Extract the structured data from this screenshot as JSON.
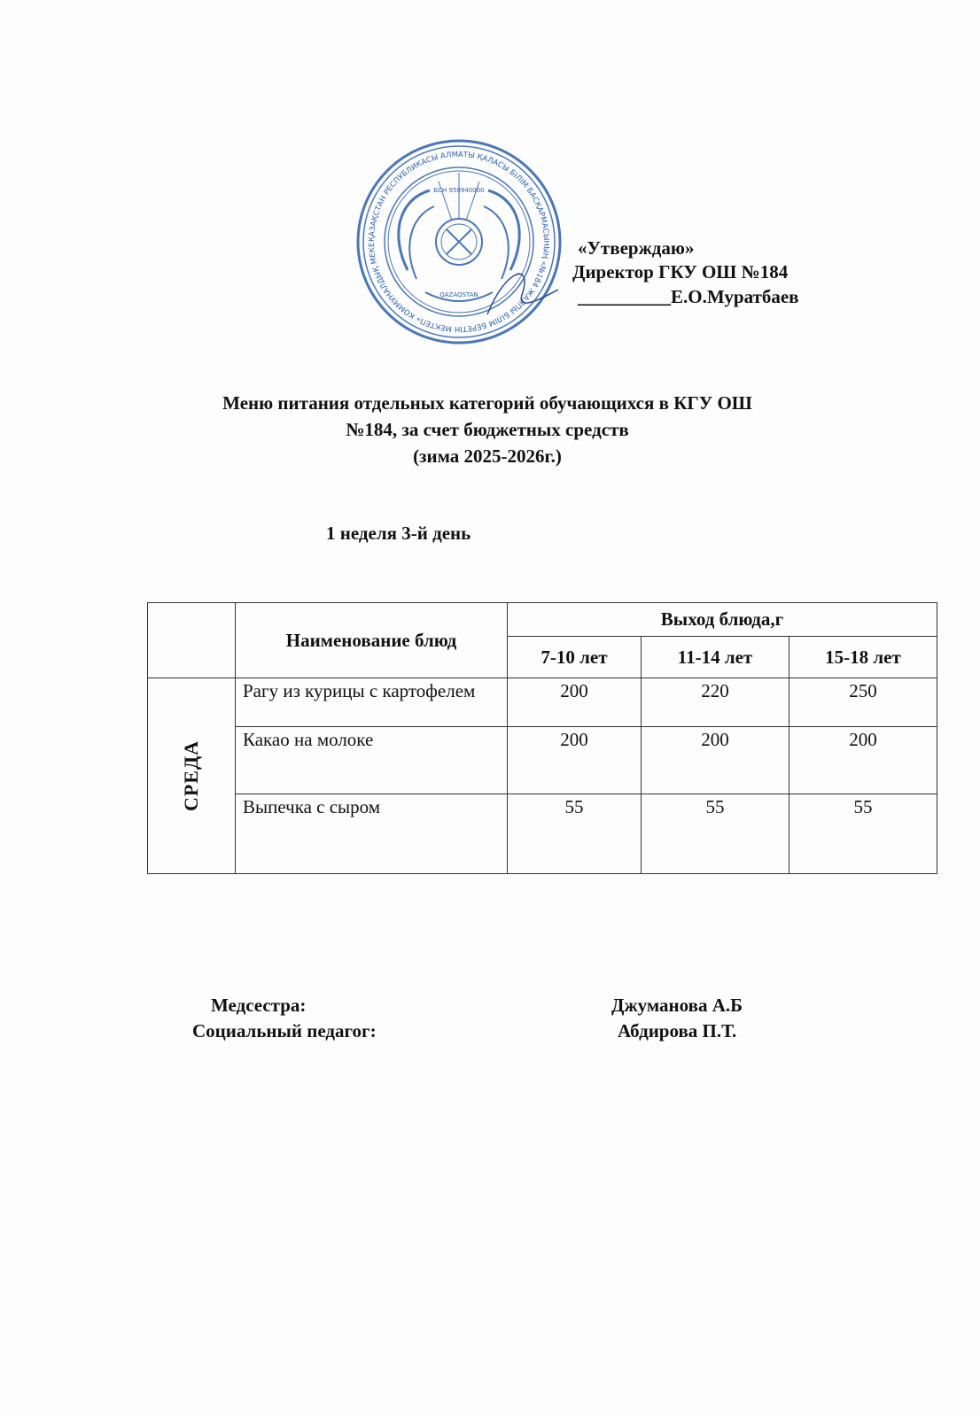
{
  "stamp": {
    "text_outer": "ҚАЗАҚСТАН РЕСПУБЛИКАСЫ АЛМАТЫ ҚАЛАСЫ БІЛІМ БАСҚАРМАСЫНЫҢ «№184 ЖАЛПЫ БІЛІМ БЕРЕТІН МЕКТЕП» КОММУНАЛДЫҚ МЕКЕМЕСІ",
    "text_inner": "БСН 950940000",
    "emblem_text": "QAZAQSTAN",
    "color": "#2a5fb0"
  },
  "approval": {
    "approve": "«Утверждаю»",
    "position": "Директор ГКУ ОШ №184",
    "signature_line": "__________",
    "name": "Е.О.Муратбаев"
  },
  "title": {
    "line1": "Меню питания отдельных категорий обучающихся в КГУ ОШ",
    "line2": "№184, за счет бюджетных средств",
    "line3": "(зима 2025-2026г.)"
  },
  "subtitle": "1 неделя 3-й день",
  "table": {
    "header_dish": "Наименование блюд",
    "header_yield": "Выход блюда,г",
    "age_groups": [
      "7-10 лет",
      "11-14 лет",
      "15-18 лет"
    ],
    "day": "СРЕДА",
    "rows": [
      {
        "dish": "Рагу из курицы с картофелем",
        "values": [
          "200",
          "220",
          "250"
        ]
      },
      {
        "dish": "Какао на молоке",
        "values": [
          "200",
          "200",
          "200"
        ]
      },
      {
        "dish": "Выпечка с сыром",
        "values": [
          "55",
          "55",
          "55"
        ]
      }
    ]
  },
  "signatures": [
    {
      "role": "Медсестра:",
      "name": "Джуманова А.Б"
    },
    {
      "role": "Социальный педагог:",
      "name": "Абдирова П.Т."
    }
  ]
}
